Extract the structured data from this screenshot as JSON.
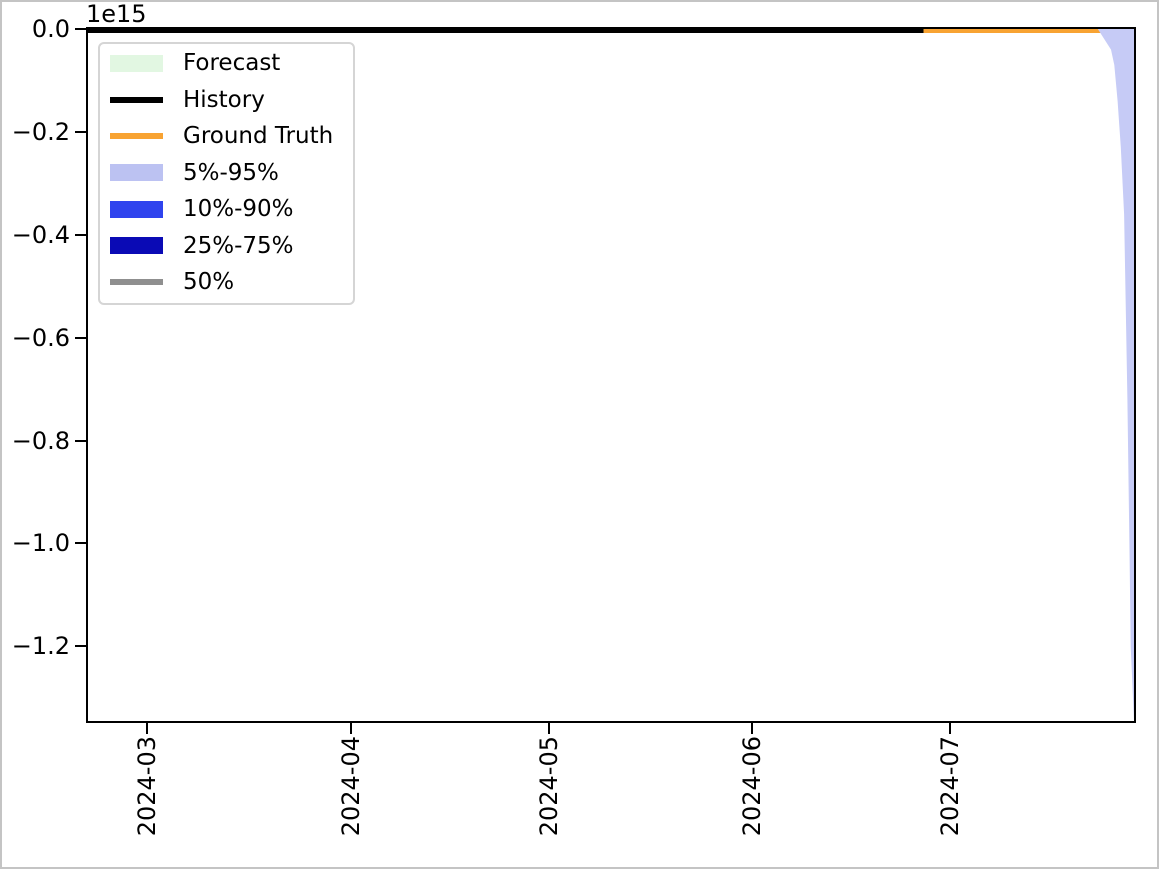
{
  "figure": {
    "background": "#ffffff",
    "frame_color": "#c4c4c4",
    "spine_color": "#000000"
  },
  "chart_data": {
    "type": "line",
    "title": "",
    "subtitle": "",
    "description": "Probabilistic time-series forecast plot: flat history and ground-truth lines at ~0, with the 5%-95% forecast uncertainty band plunging to about -1.34e15 at the right edge (late July 2024).",
    "x_axis": {
      "label": "",
      "xlim": [
        "2024-02-21",
        "2024-07-29"
      ],
      "tick_dates": [
        "2024-03-01",
        "2024-04-01",
        "2024-05-01",
        "2024-06-01",
        "2024-07-01"
      ],
      "tick_labels": [
        "2024-03",
        "2024-04",
        "2024-05",
        "2024-06",
        "2024-07"
      ],
      "tick_rotation_deg": 90,
      "grid": false
    },
    "y_axis": {
      "label": "",
      "offset_label": "1e15",
      "values_in_units_of": 1000000000000000.0,
      "ylim": [
        -1.345,
        0.0
      ],
      "tick_values": [
        0.0,
        -0.2,
        -0.4,
        -0.6,
        -0.8,
        -1.0,
        -1.2
      ],
      "tick_labels": [
        "0.0",
        "−0.2",
        "−0.4",
        "−0.6",
        "−0.8",
        "−1.0",
        "−1.2"
      ],
      "grid": false
    },
    "legend": {
      "position": "upper left",
      "border_color": "#d5d5d5",
      "entries": [
        {
          "label": "Forecast",
          "swatch": "patch",
          "color": "#e2f7e2"
        },
        {
          "label": "History",
          "swatch": "line",
          "color": "#000000"
        },
        {
          "label": "Ground Truth",
          "swatch": "line",
          "color": "#f8a332"
        },
        {
          "label": "5%-95%",
          "swatch": "patch",
          "color": "#bcc2f2"
        },
        {
          "label": "10%-90%",
          "swatch": "patch",
          "color": "#2f44ee"
        },
        {
          "label": "25%-75%",
          "swatch": "patch",
          "color": "#0a0ab5"
        },
        {
          "label": "50%",
          "swatch": "line",
          "color": "#8f8f8f"
        }
      ]
    },
    "series": [
      {
        "name": "History",
        "type": "line",
        "color": "#000000",
        "linewidth": 4,
        "points": [
          [
            "2024-02-21",
            0.0
          ],
          [
            "2024-06-27",
            0.0
          ]
        ]
      },
      {
        "name": "Ground Truth",
        "type": "line",
        "color": "#f8a332",
        "linewidth": 4,
        "points": [
          [
            "2024-06-27",
            0.0
          ],
          [
            "2024-07-29",
            0.0
          ]
        ]
      },
      {
        "name": "5%-95%",
        "type": "band",
        "color": "#c6cbf6",
        "upper": [
          [
            "2024-07-23T12:00",
            0.0
          ],
          [
            "2024-07-29",
            0.0
          ]
        ],
        "lower": [
          [
            "2024-07-23T12:00",
            0.0
          ],
          [
            "2024-07-24",
            -0.01
          ],
          [
            "2024-07-25T12:00",
            -0.04
          ],
          [
            "2024-07-26",
            -0.07
          ],
          [
            "2024-07-26T12:00",
            -0.14
          ],
          [
            "2024-07-27",
            -0.23
          ],
          [
            "2024-07-27T12:00",
            -0.36
          ],
          [
            "2024-07-28",
            -0.72
          ],
          [
            "2024-07-28T08:00",
            -1.03
          ],
          [
            "2024-07-28T12:00",
            -1.2
          ],
          [
            "2024-07-29",
            -1.345
          ]
        ]
      },
      {
        "name": "10%-90%",
        "type": "band",
        "color": "#2f44ee",
        "upper": [],
        "lower": [],
        "note": "not visibly distinct in plot; remains at ~0 along the top edge"
      },
      {
        "name": "25%-75%",
        "type": "band",
        "color": "#0a0ab5",
        "upper": [],
        "lower": [],
        "note": "not visibly distinct in plot; remains at ~0 along the top edge"
      },
      {
        "name": "50%",
        "type": "line",
        "color": "#8f8f8f",
        "points": [],
        "note": "median line not visibly distinct in plot; remains at ~0 along the top edge"
      }
    ]
  }
}
